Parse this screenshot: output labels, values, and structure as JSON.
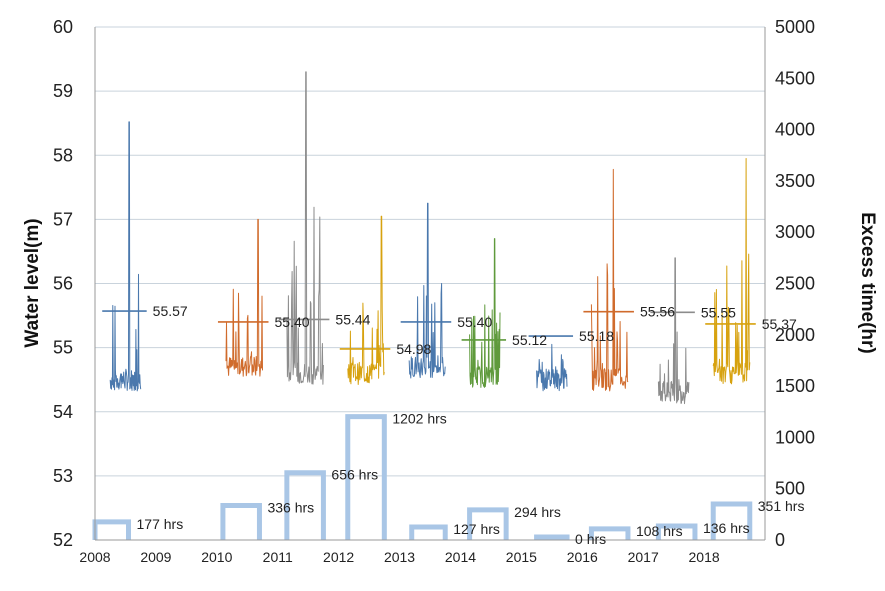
{
  "chart_data": {
    "type": "line",
    "title": "",
    "xlabel": "",
    "ylabel": "Water level(m)",
    "y2label": "Excess time(hr)",
    "xlim": [
      2008,
      2019
    ],
    "ylim": [
      52,
      60
    ],
    "y2lim": [
      0,
      5000
    ],
    "x_ticks": [
      "2008",
      "2009",
      "2010",
      "2011",
      "2012",
      "2013",
      "2014",
      "2015",
      "2016",
      "2017",
      "2018"
    ],
    "y_ticks": [
      "52",
      "53",
      "54",
      "55",
      "56",
      "57",
      "58",
      "59",
      "60"
    ],
    "y2_ticks": [
      "0",
      "500",
      "1000",
      "1500",
      "2000",
      "2500",
      "3000",
      "3500",
      "4000",
      "4500",
      "5000"
    ],
    "grid": "horizontal",
    "colors": {
      "blue": "#4a78ad",
      "orange": "#d06b2c",
      "gray": "#8c8c8c",
      "gold": "#d7a20f",
      "green": "#5f9a3c",
      "bar": "#a9c6e6"
    },
    "series": [
      {
        "year": 2008,
        "color": "blue",
        "x_start": 2008.25,
        "x_end": 2008.75,
        "base": 54.5,
        "mean": 55.57,
        "peak": 58.52,
        "peak_pos": 0.62,
        "label": "55.57"
      },
      {
        "year": 2010,
        "color": "orange",
        "x_start": 2010.15,
        "x_end": 2010.75,
        "base": 54.7,
        "mean": 55.4,
        "peak": 57.0,
        "peak_pos": 0.88,
        "label": "55.40"
      },
      {
        "year": 2011,
        "color": "gray",
        "x_start": 2011.15,
        "x_end": 2011.75,
        "base": 54.6,
        "mean": 55.44,
        "peak": 59.3,
        "peak_pos": 0.52,
        "label": "55.44"
      },
      {
        "year": 2012,
        "color": "gold",
        "x_start": 2012.15,
        "x_end": 2012.75,
        "base": 54.6,
        "mean": 54.98,
        "peak": 57.05,
        "peak_pos": 0.92,
        "label": "54.98"
      },
      {
        "year": 2013,
        "color": "blue",
        "x_start": 2013.15,
        "x_end": 2013.75,
        "base": 54.7,
        "mean": 55.4,
        "peak": 57.25,
        "peak_pos": 0.52,
        "label": "55.40"
      },
      {
        "year": 2014,
        "color": "green",
        "x_start": 2014.15,
        "x_end": 2014.65,
        "base": 54.55,
        "mean": 55.12,
        "peak": 56.7,
        "peak_pos": 0.82,
        "label": "55.12"
      },
      {
        "year": 2015,
        "color": "blue",
        "x_start": 2015.25,
        "x_end": 2015.75,
        "base": 54.5,
        "mean": 55.18,
        "peak": 55.05,
        "peak_pos": 0.5,
        "label": "55.18"
      },
      {
        "year": 2016,
        "color": "orange",
        "x_start": 2016.15,
        "x_end": 2016.75,
        "base": 54.5,
        "mean": 55.56,
        "peak": 57.78,
        "peak_pos": 0.6,
        "label": "55.56"
      },
      {
        "year": 2017,
        "color": "gray",
        "x_start": 2017.25,
        "x_end": 2017.75,
        "base": 54.3,
        "mean": 55.55,
        "peak": 56.4,
        "peak_pos": 0.55,
        "label": "55.55"
      },
      {
        "year": 2018,
        "color": "gold",
        "x_start": 2018.15,
        "x_end": 2018.75,
        "base": 54.6,
        "mean": 55.37,
        "peak": 57.95,
        "peak_pos": 0.9,
        "label": "55.37"
      }
    ],
    "excess_bars": [
      {
        "x_start": 2008.0,
        "x_end": 2008.55,
        "value": 177,
        "label": "177 hrs"
      },
      {
        "x_start": 2010.1,
        "x_end": 2010.7,
        "value": 336,
        "label": "336 hrs"
      },
      {
        "x_start": 2011.15,
        "x_end": 2011.75,
        "value": 656,
        "label": "656 hrs"
      },
      {
        "x_start": 2012.15,
        "x_end": 2012.75,
        "value": 1202,
        "label": "1202 hrs"
      },
      {
        "x_start": 2013.2,
        "x_end": 2013.75,
        "value": 127,
        "label": "127 hrs"
      },
      {
        "x_start": 2014.15,
        "x_end": 2014.75,
        "value": 294,
        "label": "294 hrs"
      },
      {
        "x_start": 2015.25,
        "x_end": 2015.75,
        "value": 0,
        "label": "0 hrs"
      },
      {
        "x_start": 2016.15,
        "x_end": 2016.75,
        "value": 108,
        "label": "108 hrs"
      },
      {
        "x_start": 2017.25,
        "x_end": 2017.85,
        "value": 136,
        "label": "136 hrs"
      },
      {
        "x_start": 2018.15,
        "x_end": 2018.75,
        "value": 351,
        "label": "351 hrs"
      }
    ]
  }
}
